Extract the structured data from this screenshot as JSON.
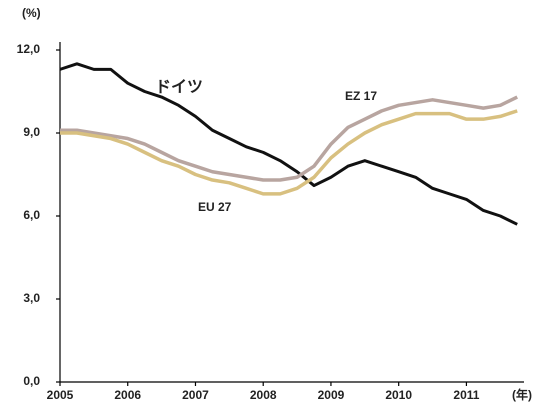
{
  "chart_data": {
    "type": "line",
    "y_unit": "(%)",
    "x_unit": "(年)",
    "x": [
      2005,
      2005.25,
      2005.5,
      2005.75,
      2006,
      2006.25,
      2006.5,
      2006.75,
      2007,
      2007.25,
      2007.5,
      2007.75,
      2008,
      2008.25,
      2008.5,
      2008.75,
      2009,
      2009.25,
      2009.5,
      2009.75,
      2010,
      2010.25,
      2010.5,
      2010.75,
      2011,
      2011.25,
      2011.5,
      2011.75
    ],
    "series": [
      {
        "name": "ドイツ",
        "color": "#111111",
        "values": [
          11.3,
          11.5,
          11.3,
          11.3,
          10.8,
          10.5,
          10.3,
          10.0,
          9.6,
          9.1,
          8.8,
          8.5,
          8.3,
          8.0,
          7.6,
          7.1,
          7.4,
          7.8,
          8.0,
          7.8,
          7.6,
          7.4,
          7.0,
          6.8,
          6.6,
          6.2,
          6.0,
          5.7
        ]
      },
      {
        "name": "EZ 17",
        "color": "#b8a5a0",
        "values": [
          9.1,
          9.1,
          9.0,
          8.9,
          8.8,
          8.6,
          8.3,
          8.0,
          7.8,
          7.6,
          7.5,
          7.4,
          7.3,
          7.3,
          7.4,
          7.8,
          8.6,
          9.2,
          9.5,
          9.8,
          10.0,
          10.1,
          10.2,
          10.1,
          10.0,
          9.9,
          10.0,
          10.3
        ]
      },
      {
        "name": "EU 27",
        "color": "#d8c080",
        "values": [
          9.0,
          9.0,
          8.9,
          8.8,
          8.6,
          8.3,
          8.0,
          7.8,
          7.5,
          7.3,
          7.2,
          7.0,
          6.8,
          6.8,
          7.0,
          7.4,
          8.1,
          8.6,
          9.0,
          9.3,
          9.5,
          9.7,
          9.7,
          9.7,
          9.5,
          9.5,
          9.6,
          9.8
        ]
      }
    ],
    "xlim": [
      2005,
      2011.85
    ],
    "xticks": [
      2005,
      2006,
      2007,
      2008,
      2009,
      2010,
      2011
    ],
    "ylim": [
      0,
      12
    ],
    "yticks": [
      {
        "value": 0,
        "label": "0,0"
      },
      {
        "value": 3,
        "label": "3,0"
      },
      {
        "value": 6,
        "label": "6,0"
      },
      {
        "value": 9,
        "label": "9,0"
      },
      {
        "value": 12,
        "label": "12,0"
      }
    ]
  }
}
